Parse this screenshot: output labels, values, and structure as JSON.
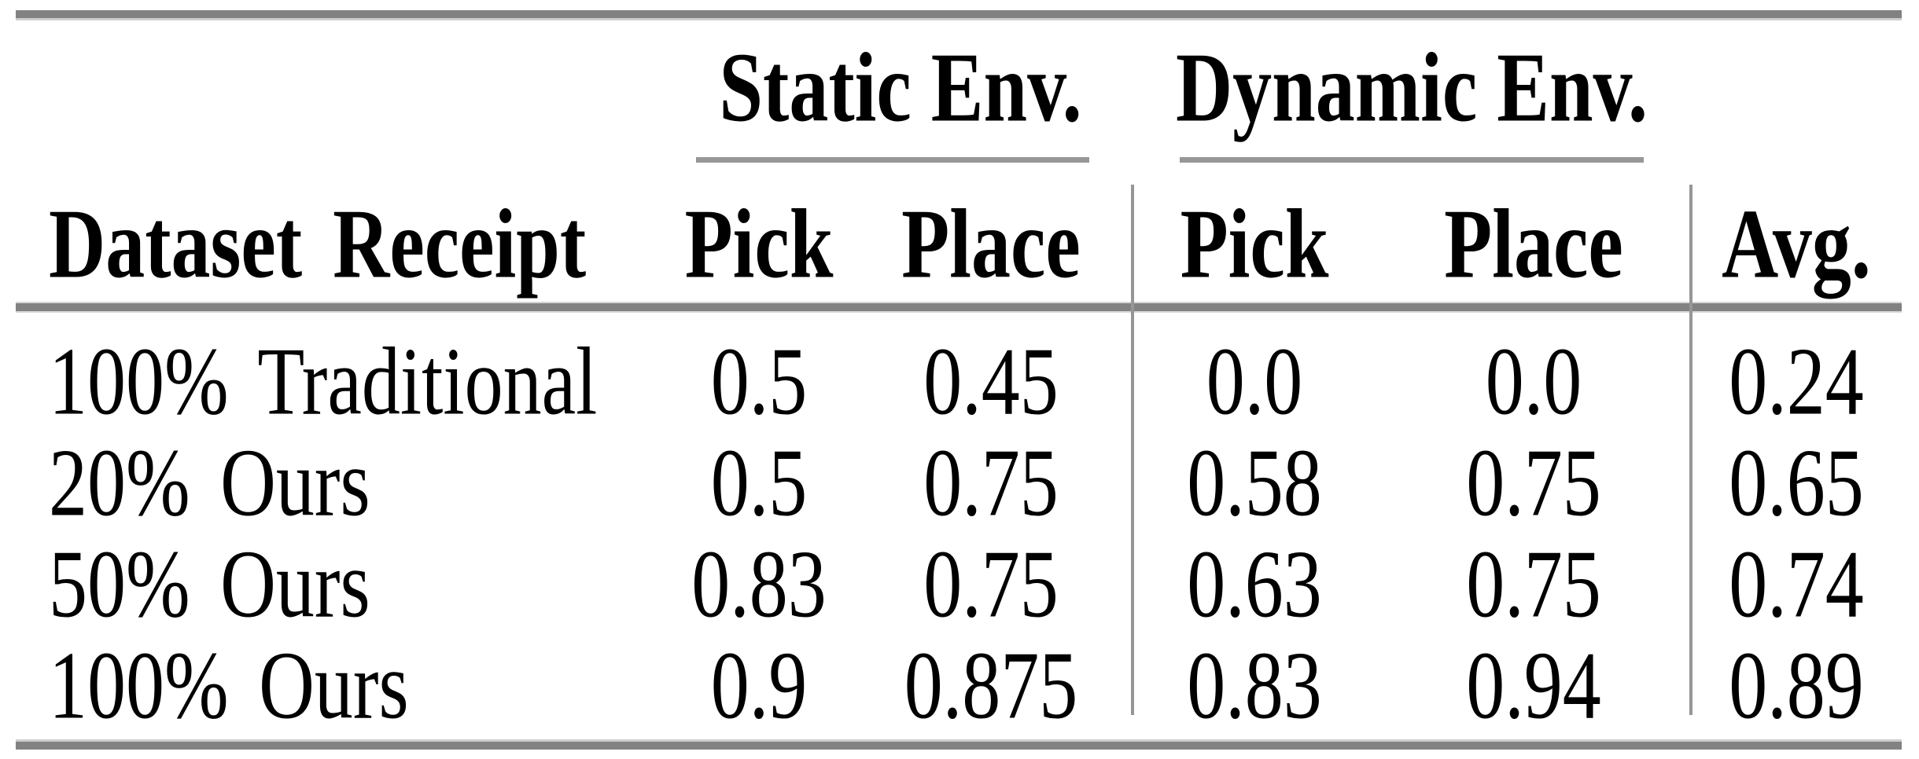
{
  "table": {
    "groups": [
      "Static Env.",
      "Dynamic Env."
    ],
    "columns": [
      "Dataset Receipt",
      "Pick",
      "Place",
      "Pick",
      "Place",
      "Avg."
    ],
    "rows": [
      [
        "100% Traditional",
        "0.5",
        "0.45",
        "0.0",
        "0.0",
        "0.24"
      ],
      [
        "20% Ours",
        "0.5",
        "0.75",
        "0.58",
        "0.75",
        "0.65"
      ],
      [
        "50% Ours",
        "0.83",
        "0.75",
        "0.63",
        "0.75",
        "0.74"
      ],
      [
        "100% Ours",
        "0.9",
        "0.875",
        "0.83",
        "0.94",
        "0.89"
      ]
    ]
  },
  "colors": {
    "background": "#ffffff",
    "text": "#000000",
    "thick_rule": "#828282",
    "rule_highlight": "#cdcdcd",
    "cmidrule": "#979797",
    "vertical_separator": "#969696"
  }
}
